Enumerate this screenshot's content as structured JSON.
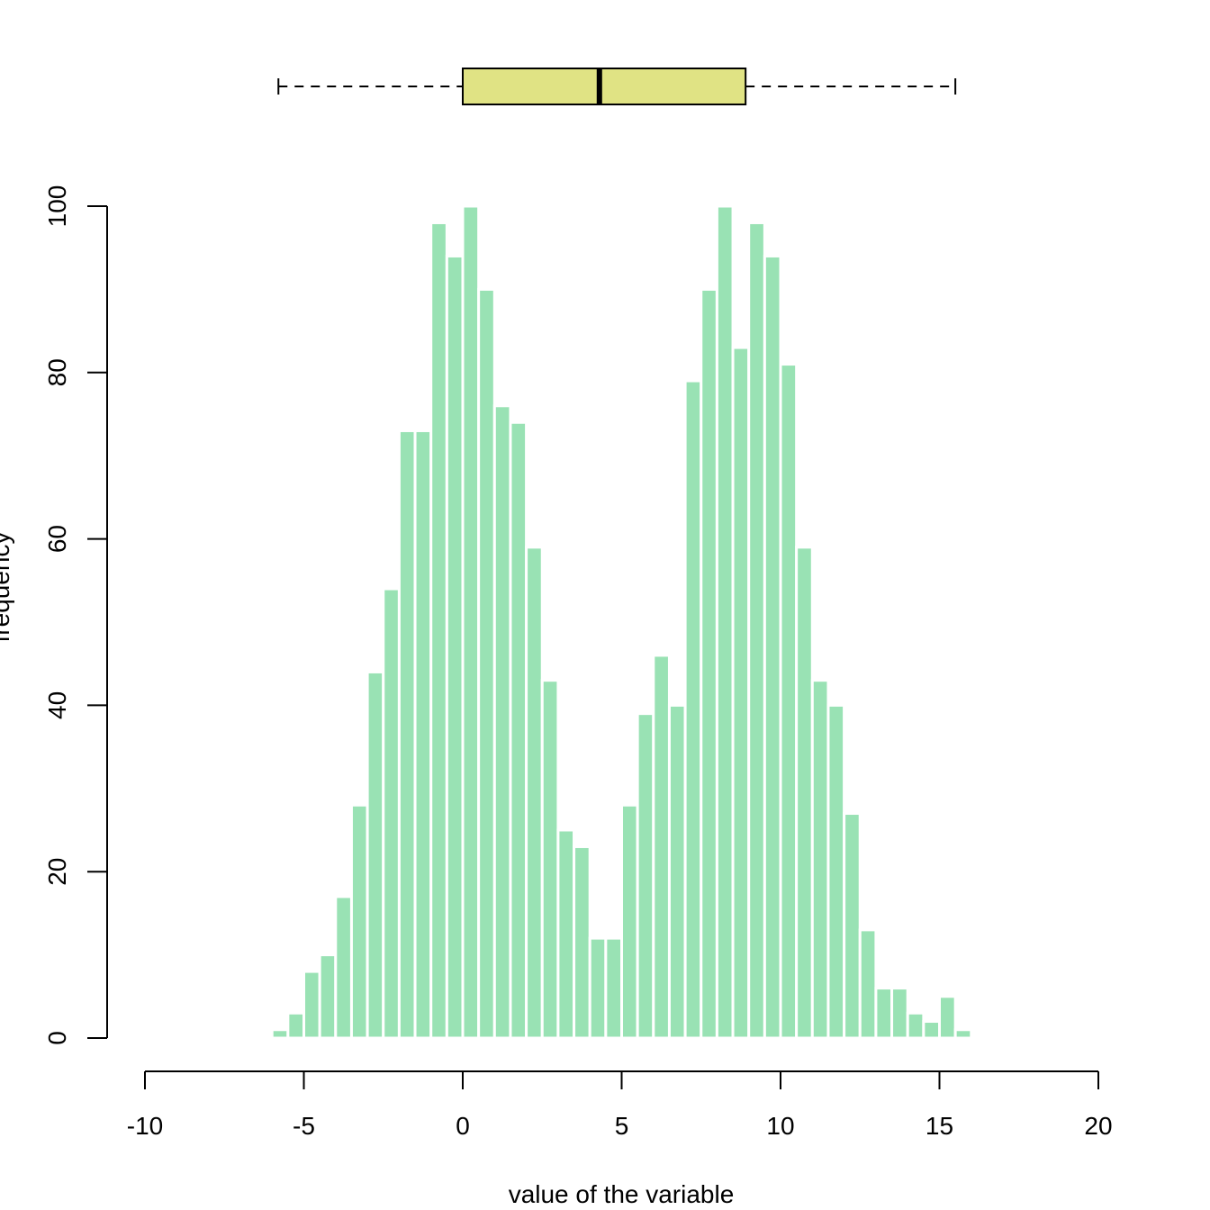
{
  "chart_data": {
    "type": "bar",
    "subtype": "histogram with boxplot",
    "title": "",
    "xlabel": "value of the variable",
    "ylabel": "frequency",
    "xlim": [
      -10,
      20
    ],
    "ylim": [
      0,
      100
    ],
    "x_ticks": [
      -10,
      -5,
      0,
      5,
      10,
      15,
      20
    ],
    "y_ticks": [
      0,
      20,
      40,
      60,
      80,
      100
    ],
    "bin_width": 0.5,
    "bin_start": -6,
    "values": [
      1,
      3,
      8,
      10,
      17,
      28,
      44,
      54,
      73,
      73,
      98,
      94,
      100,
      90,
      76,
      74,
      59,
      43,
      25,
      23,
      12,
      12,
      28,
      39,
      46,
      40,
      79,
      90,
      100,
      83,
      98,
      94,
      81,
      59,
      43,
      40,
      27,
      13,
      6,
      6,
      3,
      2,
      5,
      1
    ],
    "boxplot": {
      "whisker_low": -5.8,
      "q1": 0,
      "median": 4.3,
      "q3": 8.9,
      "whisker_high": 15.5
    },
    "colors": {
      "bars": "#99e2b4",
      "bar_border": "#ffffff",
      "box_fill": "#e0e384",
      "axis": "#000000"
    },
    "grid": false,
    "legend": "none"
  }
}
